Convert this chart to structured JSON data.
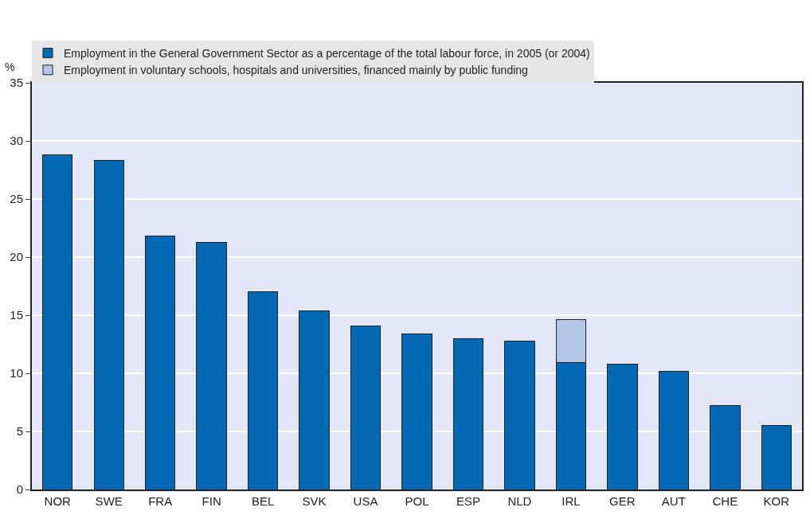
{
  "chart_data": {
    "type": "bar",
    "stacked": true,
    "ylabel": "%",
    "categories": [
      "NOR",
      "SWE",
      "FRA",
      "FIN",
      "BEL",
      "SVK",
      "USA",
      "POL",
      "ESP",
      "NLD",
      "IRL",
      "GER",
      "AUT",
      "CHE",
      "KOR"
    ],
    "series": [
      {
        "name": "Employment in the General Government Sector as a percentage of the total labour force, in 2005 (or 2004)",
        "color": "#0068b4",
        "values": [
          28.8,
          28.3,
          21.8,
          21.3,
          17.0,
          15.4,
          14.1,
          13.4,
          13.0,
          12.8,
          10.9,
          10.8,
          10.2,
          7.2,
          5.5
        ]
      },
      {
        "name": "Employment in voluntary schools, hospitals and universities, financed mainly by public funding",
        "color": "#b4c6e6",
        "values": [
          null,
          null,
          null,
          null,
          null,
          null,
          null,
          null,
          null,
          null,
          3.7,
          null,
          null,
          null,
          null
        ]
      }
    ],
    "ylim": [
      0,
      35
    ],
    "yticks": [
      0,
      5,
      10,
      15,
      20,
      25,
      30,
      35
    ],
    "grid": "y",
    "legend": "top"
  }
}
